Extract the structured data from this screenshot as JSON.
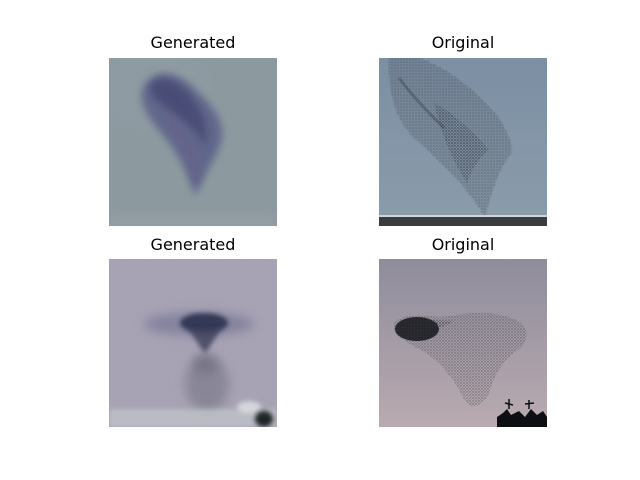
{
  "figure": {
    "panels": [
      {
        "title": "Generated",
        "description": "blurry generated image of a bird murmuration shape over gray-blue sky"
      },
      {
        "title": "Original",
        "description": "photo of a starling murmuration in a blue-gray sky with a dark ground strip at bottom"
      },
      {
        "title": "Generated",
        "description": "blurry generated image of a dark funnel-shaped cloud over pale lavender sky"
      },
      {
        "title": "Original",
        "description": "photo of a starling murmuration at dusk with tree silhouettes at bottom right"
      }
    ]
  }
}
